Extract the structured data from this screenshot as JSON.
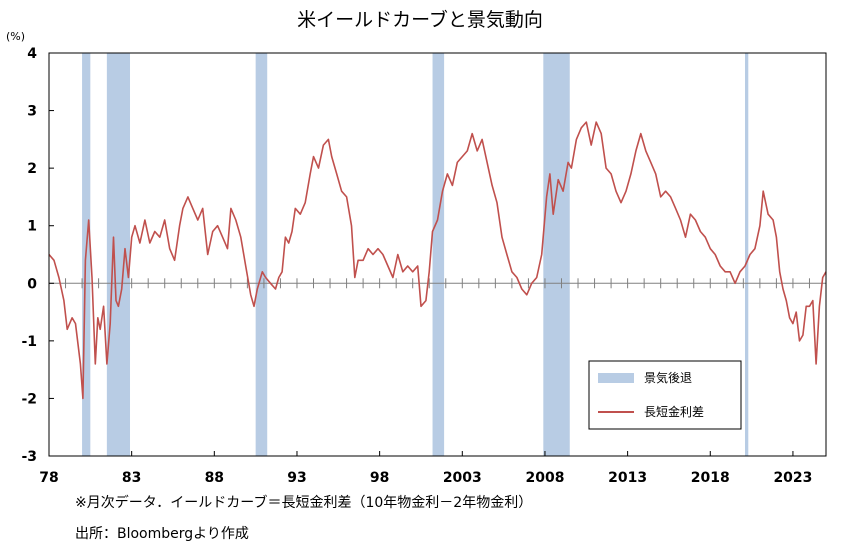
{
  "chart_data": {
    "type": "line",
    "title": "米イールドカーブと景気動向",
    "y_unit": "(%)",
    "ylim": [
      -3,
      4
    ],
    "y_ticks": [
      "4",
      "3",
      "2",
      "1",
      "0",
      "-1",
      "-2",
      "-3"
    ],
    "xlim": [
      1978.0,
      2025.0
    ],
    "x_ticks": [
      "78",
      "83",
      "88",
      "93",
      "98",
      "2003",
      "2008",
      "2013",
      "2018",
      "2023"
    ],
    "grid": false,
    "legend_position": "bottom-right",
    "recessions": {
      "name": "景気後退",
      "color": "#b8cce4",
      "periods": [
        [
          1980.0,
          1980.5
        ],
        [
          1981.5,
          1982.9
        ],
        [
          1990.5,
          1991.2
        ],
        [
          2001.2,
          2001.9
        ],
        [
          2007.9,
          2009.5
        ],
        [
          2020.1,
          2020.3
        ]
      ]
    },
    "series": [
      {
        "name": "長短金利差",
        "color": "#c0504d",
        "points": [
          [
            1978.0,
            0.5
          ],
          [
            1978.3,
            0.4
          ],
          [
            1978.6,
            0.1
          ],
          [
            1978.9,
            -0.3
          ],
          [
            1979.1,
            -0.8
          ],
          [
            1979.4,
            -0.6
          ],
          [
            1979.6,
            -0.7
          ],
          [
            1979.9,
            -1.4
          ],
          [
            1980.05,
            -2.0
          ],
          [
            1980.2,
            0.4
          ],
          [
            1980.4,
            1.1
          ],
          [
            1980.6,
            0.1
          ],
          [
            1980.8,
            -1.4
          ],
          [
            1980.95,
            -0.6
          ],
          [
            1981.1,
            -0.8
          ],
          [
            1981.3,
            -0.4
          ],
          [
            1981.5,
            -1.4
          ],
          [
            1981.7,
            -0.7
          ],
          [
            1981.9,
            0.8
          ],
          [
            1982.05,
            -0.3
          ],
          [
            1982.2,
            -0.4
          ],
          [
            1982.4,
            -0.1
          ],
          [
            1982.6,
            0.6
          ],
          [
            1982.8,
            0.1
          ],
          [
            1983.0,
            0.8
          ],
          [
            1983.2,
            1.0
          ],
          [
            1983.5,
            0.7
          ],
          [
            1983.8,
            1.1
          ],
          [
            1984.1,
            0.7
          ],
          [
            1984.4,
            0.9
          ],
          [
            1984.7,
            0.8
          ],
          [
            1985.0,
            1.1
          ],
          [
            1985.3,
            0.6
          ],
          [
            1985.6,
            0.4
          ],
          [
            1985.9,
            1.0
          ],
          [
            1986.1,
            1.3
          ],
          [
            1986.4,
            1.5
          ],
          [
            1986.7,
            1.3
          ],
          [
            1987.0,
            1.1
          ],
          [
            1987.3,
            1.3
          ],
          [
            1987.6,
            0.5
          ],
          [
            1987.9,
            0.9
          ],
          [
            1988.2,
            1.0
          ],
          [
            1988.5,
            0.8
          ],
          [
            1988.8,
            0.6
          ],
          [
            1989.0,
            1.3
          ],
          [
            1989.3,
            1.1
          ],
          [
            1989.6,
            0.8
          ],
          [
            1989.9,
            0.3
          ],
          [
            1990.2,
            -0.2
          ],
          [
            1990.4,
            -0.4
          ],
          [
            1990.6,
            -0.1
          ],
          [
            1990.9,
            0.2
          ],
          [
            1991.1,
            0.1
          ],
          [
            1991.4,
            0.0
          ],
          [
            1991.7,
            -0.1
          ],
          [
            1991.9,
            0.1
          ],
          [
            1992.1,
            0.2
          ],
          [
            1992.3,
            0.8
          ],
          [
            1992.5,
            0.7
          ],
          [
            1992.7,
            0.9
          ],
          [
            1992.9,
            1.3
          ],
          [
            1993.2,
            1.2
          ],
          [
            1993.5,
            1.4
          ],
          [
            1993.8,
            1.9
          ],
          [
            1994.0,
            2.2
          ],
          [
            1994.3,
            2.0
          ],
          [
            1994.6,
            2.4
          ],
          [
            1994.9,
            2.5
          ],
          [
            1995.1,
            2.2
          ],
          [
            1995.4,
            1.9
          ],
          [
            1995.7,
            1.6
          ],
          [
            1996.0,
            1.5
          ],
          [
            1996.3,
            1.0
          ],
          [
            1996.5,
            0.1
          ],
          [
            1996.7,
            0.4
          ],
          [
            1997.0,
            0.4
          ],
          [
            1997.3,
            0.6
          ],
          [
            1997.6,
            0.5
          ],
          [
            1997.9,
            0.6
          ],
          [
            1998.2,
            0.5
          ],
          [
            1998.5,
            0.3
          ],
          [
            1998.8,
            0.1
          ],
          [
            1999.1,
            0.5
          ],
          [
            1999.4,
            0.2
          ],
          [
            1999.7,
            0.3
          ],
          [
            2000.0,
            0.2
          ],
          [
            2000.3,
            0.3
          ],
          [
            2000.5,
            -0.4
          ],
          [
            2000.8,
            -0.3
          ],
          [
            2001.0,
            0.2
          ],
          [
            2001.2,
            0.9
          ],
          [
            2001.5,
            1.1
          ],
          [
            2001.8,
            1.6
          ],
          [
            2002.1,
            1.9
          ],
          [
            2002.4,
            1.7
          ],
          [
            2002.7,
            2.1
          ],
          [
            2003.0,
            2.2
          ],
          [
            2003.3,
            2.3
          ],
          [
            2003.6,
            2.6
          ],
          [
            2003.9,
            2.3
          ],
          [
            2004.2,
            2.5
          ],
          [
            2004.5,
            2.1
          ],
          [
            2004.8,
            1.7
          ],
          [
            2005.1,
            1.4
          ],
          [
            2005.4,
            0.8
          ],
          [
            2005.7,
            0.5
          ],
          [
            2006.0,
            0.2
          ],
          [
            2006.3,
            0.1
          ],
          [
            2006.6,
            -0.1
          ],
          [
            2006.9,
            -0.2
          ],
          [
            2007.2,
            0.0
          ],
          [
            2007.5,
            0.1
          ],
          [
            2007.8,
            0.5
          ],
          [
            2008.1,
            1.5
          ],
          [
            2008.3,
            1.9
          ],
          [
            2008.5,
            1.2
          ],
          [
            2008.8,
            1.8
          ],
          [
            2009.1,
            1.6
          ],
          [
            2009.4,
            2.1
          ],
          [
            2009.6,
            2.0
          ],
          [
            2009.9,
            2.5
          ],
          [
            2010.2,
            2.7
          ],
          [
            2010.5,
            2.8
          ],
          [
            2010.8,
            2.4
          ],
          [
            2011.1,
            2.8
          ],
          [
            2011.4,
            2.6
          ],
          [
            2011.7,
            2.0
          ],
          [
            2012.0,
            1.9
          ],
          [
            2012.3,
            1.6
          ],
          [
            2012.6,
            1.4
          ],
          [
            2012.9,
            1.6
          ],
          [
            2013.2,
            1.9
          ],
          [
            2013.5,
            2.3
          ],
          [
            2013.8,
            2.6
          ],
          [
            2014.1,
            2.3
          ],
          [
            2014.4,
            2.1
          ],
          [
            2014.7,
            1.9
          ],
          [
            2015.0,
            1.5
          ],
          [
            2015.3,
            1.6
          ],
          [
            2015.6,
            1.5
          ],
          [
            2015.9,
            1.3
          ],
          [
            2016.2,
            1.1
          ],
          [
            2016.5,
            0.8
          ],
          [
            2016.8,
            1.2
          ],
          [
            2017.1,
            1.1
          ],
          [
            2017.4,
            0.9
          ],
          [
            2017.7,
            0.8
          ],
          [
            2018.0,
            0.6
          ],
          [
            2018.3,
            0.5
          ],
          [
            2018.6,
            0.3
          ],
          [
            2018.9,
            0.2
          ],
          [
            2019.2,
            0.2
          ],
          [
            2019.5,
            0.0
          ],
          [
            2019.8,
            0.2
          ],
          [
            2020.1,
            0.3
          ],
          [
            2020.4,
            0.5
          ],
          [
            2020.7,
            0.6
          ],
          [
            2021.0,
            1.0
          ],
          [
            2021.2,
            1.6
          ],
          [
            2021.5,
            1.2
          ],
          [
            2021.8,
            1.1
          ],
          [
            2022.0,
            0.8
          ],
          [
            2022.2,
            0.2
          ],
          [
            2022.4,
            -0.1
          ],
          [
            2022.6,
            -0.3
          ],
          [
            2022.8,
            -0.6
          ],
          [
            2023.0,
            -0.7
          ],
          [
            2023.2,
            -0.5
          ],
          [
            2023.4,
            -1.0
          ],
          [
            2023.6,
            -0.9
          ],
          [
            2023.8,
            -0.4
          ],
          [
            2024.0,
            -0.4
          ],
          [
            2024.2,
            -0.3
          ],
          [
            2024.4,
            -1.4
          ],
          [
            2024.6,
            -0.4
          ],
          [
            2024.8,
            0.1
          ],
          [
            2025.0,
            0.2
          ]
        ]
      }
    ]
  },
  "notes": {
    "definition": "※月次データ．イールドカーブ＝長短金利差（10年物金利－2年物金利）",
    "source": "出所：Bloombergより作成"
  }
}
